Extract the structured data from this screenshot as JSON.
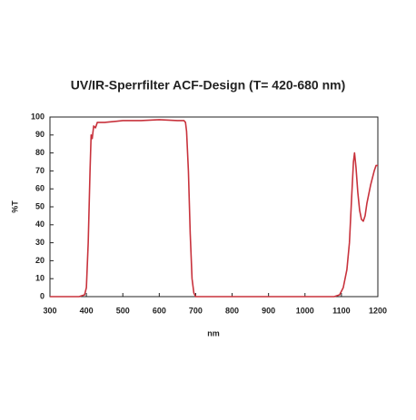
{
  "chart_data": {
    "type": "line",
    "title": "UV/IR-Sperrfilter ACF-Design (T= 420-680 nm)",
    "x_label": "nm",
    "y_label": "%T",
    "x": [
      300,
      380,
      395,
      400,
      405,
      410,
      413,
      416,
      420,
      425,
      430,
      450,
      500,
      550,
      600,
      650,
      668,
      672,
      675,
      680,
      685,
      690,
      695,
      700,
      1080,
      1095,
      1105,
      1115,
      1122,
      1128,
      1133,
      1136,
      1140,
      1145,
      1150,
      1155,
      1160,
      1165,
      1170,
      1180,
      1190,
      1195,
      1200
    ],
    "series": [
      {
        "name": "T",
        "color": "#c8323c",
        "values": [
          0,
          0,
          1,
          5,
          30,
          70,
          90,
          88,
          95,
          94,
          97,
          97,
          98,
          98,
          98.5,
          98,
          98,
          97,
          92,
          70,
          35,
          10,
          2,
          0,
          0,
          1,
          5,
          15,
          30,
          55,
          75,
          80,
          72,
          58,
          48,
          43,
          42,
          45,
          52,
          62,
          70,
          73,
          73
        ]
      }
    ],
    "xlim": [
      300,
      1200
    ],
    "xticks": [
      300,
      400,
      500,
      600,
      700,
      800,
      900,
      1000,
      1100,
      1200
    ],
    "ylim": [
      0,
      100
    ],
    "yticks": [
      0,
      10,
      20,
      30,
      40,
      50,
      60,
      70,
      80,
      90,
      100
    ],
    "grid": false
  }
}
